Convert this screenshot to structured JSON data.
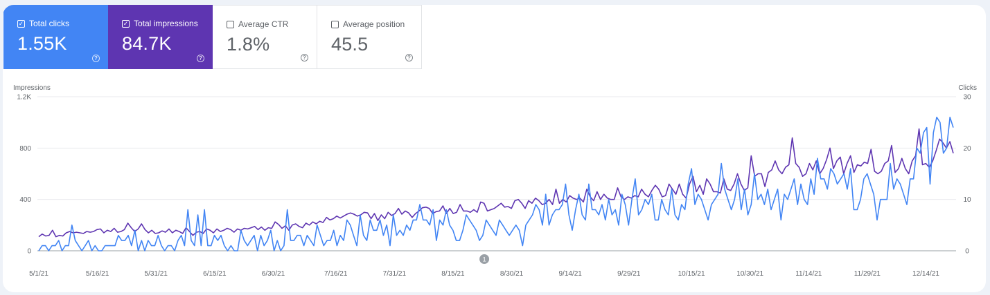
{
  "metrics": [
    {
      "label": "Total clicks",
      "value": "1.55K",
      "selected": true,
      "color": "#4285f4"
    },
    {
      "label": "Total impressions",
      "value": "84.7K",
      "selected": true,
      "color": "#5e35b1"
    },
    {
      "label": "Average CTR",
      "value": "1.8%",
      "selected": false,
      "color": "#ffffff"
    },
    {
      "label": "Average position",
      "value": "45.5",
      "selected": false,
      "color": "#ffffff"
    }
  ],
  "help_glyph": "?",
  "colors": {
    "clicks": "#4285f4",
    "impressions": "#5e35b1",
    "grid": "#e8eaed",
    "axis_text": "#5f6368"
  },
  "annotation": {
    "label": "1",
    "date": "8/23/21"
  },
  "chart_data": {
    "type": "line",
    "left_axis": {
      "label": "Impressions",
      "ticks": [
        "0",
        "400",
        "800",
        "1.2K"
      ],
      "range": [
        0,
        1200
      ]
    },
    "right_axis": {
      "label": "Clicks",
      "ticks": [
        "0",
        "10",
        "20",
        "30"
      ],
      "range": [
        0,
        30
      ]
    },
    "x_ticks": [
      "5/1/21",
      "5/16/21",
      "5/31/21",
      "6/15/21",
      "6/30/21",
      "7/16/21",
      "7/31/21",
      "8/15/21",
      "8/30/21",
      "9/14/21",
      "9/29/21",
      "10/15/21",
      "10/30/21",
      "11/14/21",
      "11/29/21",
      "12/14/21"
    ],
    "x_range": [
      "5/1/21",
      "12/21/21"
    ],
    "series": [
      {
        "name": "Impressions",
        "axis": "left",
        "values": [
          110,
          130,
          115,
          120,
          160,
          110,
          120,
          115,
          140,
          150,
          140,
          145,
          140,
          135,
          150,
          145,
          150,
          165,
          170,
          140,
          160,
          150,
          175,
          145,
          150,
          165,
          215,
          180,
          150,
          170,
          210,
          165,
          140,
          160,
          135,
          140,
          155,
          145,
          170,
          140,
          160,
          150,
          135,
          180,
          150,
          120,
          145,
          150,
          135,
          170,
          160,
          140,
          170,
          150,
          160,
          175,
          165,
          145,
          170,
          160,
          175,
          170,
          180,
          190,
          165,
          185,
          160,
          180,
          175,
          225,
          205,
          175,
          195,
          160,
          200,
          210,
          190,
          180,
          215,
          200,
          225,
          210,
          230,
          220,
          260,
          240,
          250,
          270,
          255,
          270,
          285,
          295,
          285,
          270,
          280,
          300,
          295,
          250,
          290,
          235,
          280,
          250,
          300,
          275,
          290,
          330,
          285,
          310,
          295,
          260,
          290,
          310,
          335,
          340,
          330,
          290,
          305,
          310,
          350,
          290,
          330,
          290,
          300,
          360,
          310,
          310,
          300,
          320,
          300,
          380,
          370,
          310,
          320,
          330,
          350,
          370,
          340,
          345,
          330,
          390,
          400,
          370,
          330,
          390,
          370,
          410,
          390,
          360,
          370,
          400,
          360,
          480,
          370,
          400,
          380,
          430,
          410,
          400,
          410,
          380,
          480,
          420,
          390,
          460,
          400,
          440,
          410,
          400,
          400,
          490,
          420,
          400,
          420,
          410,
          430,
          420,
          480,
          440,
          420,
          470,
          510,
          480,
          420,
          430,
          520,
          480,
          440,
          520,
          440,
          410,
          520,
          580,
          460,
          510,
          440,
          560,
          520,
          460,
          460,
          450,
          560,
          480,
          470,
          520,
          600,
          520,
          470,
          490,
          740,
          580,
          600,
          600,
          500,
          610,
          630,
          700,
          630,
          600,
          650,
          670,
          880,
          680,
          650,
          580,
          600,
          680,
          630,
          700,
          600,
          640,
          710,
          800,
          640,
          700,
          730,
          600,
          680,
          740,
          610,
          670,
          660,
          690,
          680,
          790,
          620,
          600,
          620,
          680,
          700,
          820,
          610,
          640,
          720,
          640,
          600,
          700,
          740,
          950,
          670,
          680,
          650,
          700,
          780,
          870,
          840,
          800,
          850,
          760
        ],
        "color": "#5e35b1"
      },
      {
        "name": "Clicks",
        "axis": "right",
        "values": [
          0,
          1,
          1,
          0,
          1,
          1,
          2,
          0,
          1,
          1,
          5,
          2,
          1,
          0,
          1,
          2,
          0,
          1,
          0,
          0,
          1,
          1,
          1,
          1,
          3,
          2,
          2,
          3,
          1,
          4,
          0,
          2,
          0,
          2,
          1,
          1,
          3,
          1,
          0,
          1,
          1,
          0,
          2,
          3,
          1,
          8,
          2,
          1,
          7,
          1,
          8,
          1,
          1,
          3,
          2,
          3,
          1,
          0,
          1,
          0,
          0,
          4,
          2,
          1,
          2,
          3,
          0,
          3,
          1,
          2,
          4,
          0,
          2,
          0,
          1,
          8,
          2,
          2,
          3,
          3,
          1,
          3,
          2,
          1,
          5,
          3,
          1,
          2,
          2,
          4,
          1,
          3,
          2,
          6,
          5,
          3,
          1,
          7,
          3,
          2,
          6,
          4,
          4,
          6,
          3,
          5,
          1,
          7,
          3,
          4,
          3,
          5,
          4,
          6,
          6,
          9,
          6,
          6,
          5,
          8,
          2,
          6,
          5,
          8,
          5,
          4,
          2,
          2,
          4,
          7,
          6,
          5,
          4,
          2,
          3,
          6,
          5,
          4,
          3,
          6,
          5,
          4,
          3,
          4,
          5,
          4,
          1,
          5,
          6,
          7,
          9,
          8,
          5,
          11,
          5,
          7,
          8,
          8,
          9,
          13,
          7,
          4,
          8,
          11,
          7,
          6,
          13,
          8,
          8,
          7,
          9,
          6,
          10,
          7,
          8,
          5,
          11,
          9,
          5,
          10,
          14,
          7,
          8,
          10,
          9,
          11,
          6,
          6,
          10,
          8,
          7,
          12,
          7,
          6,
          9,
          8,
          13,
          16,
          9,
          11,
          10,
          8,
          6,
          9,
          10,
          11,
          17,
          12,
          10,
          8,
          10,
          14,
          8,
          12,
          7,
          9,
          15,
          10,
          11,
          9,
          12,
          8,
          10,
          12,
          6,
          11,
          10,
          12,
          14,
          9,
          13,
          10,
          9,
          14,
          11,
          18,
          14,
          14,
          12,
          16,
          15,
          13,
          14,
          15,
          12,
          16,
          8,
          8,
          10,
          14,
          15,
          13,
          11,
          6,
          10,
          10,
          10,
          17,
          12,
          14,
          13,
          11,
          9,
          14,
          14,
          20,
          19,
          23,
          24,
          13,
          23,
          26,
          25,
          19,
          20,
          26,
          24
        ]
      }
    ]
  }
}
